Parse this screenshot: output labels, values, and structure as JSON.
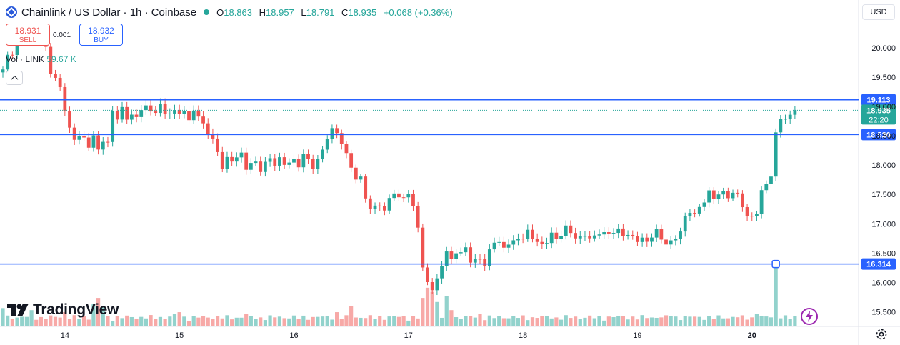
{
  "header": {
    "title": "Chainlink / US Dollar · 1h · Coinbase",
    "ohlc": [
      {
        "k": "O",
        "v": "18.863"
      },
      {
        "k": "H",
        "v": "18.957"
      },
      {
        "k": "L",
        "v": "18.791"
      },
      {
        "k": "C",
        "v": "18.935"
      }
    ],
    "change": "+0.068 (+0.36%)"
  },
  "trade": {
    "sell_price": "18.931",
    "sell_label": "SELL",
    "spread": "0.001",
    "buy_price": "18.932",
    "buy_label": "BUY"
  },
  "volume": {
    "label": "Vol · LINK",
    "value": "59.67 K"
  },
  "currency": "USD",
  "brand": "TradingView",
  "colors": {
    "up": "#26a69a",
    "down": "#ef5350",
    "line": "#2962ff",
    "up_vol": "#92d2cc",
    "down_vol": "#f7a9a7"
  },
  "chart_data": {
    "type": "candlestick",
    "y_min": 15.25,
    "y_max": 20.4,
    "y_ticks": [
      "20.000",
      "19.500",
      "19.000",
      "18.500",
      "18.000",
      "17.500",
      "17.000",
      "16.500",
      "16.000",
      "15.500"
    ],
    "x_labels": [
      {
        "label": "14",
        "index": 13
      },
      {
        "label": "15",
        "index": 37
      },
      {
        "label": "16",
        "index": 61
      },
      {
        "label": "17",
        "index": 85
      },
      {
        "label": "18",
        "index": 109
      },
      {
        "label": "19",
        "index": 133
      },
      {
        "label": "20",
        "index": 157
      }
    ],
    "levels": [
      {
        "label": "19.113",
        "value": 19.113
      },
      {
        "label": "18.520",
        "value": 18.52
      },
      {
        "label": "16.314",
        "value": 16.314
      }
    ],
    "last": {
      "price_label": "18.935",
      "value": 18.935,
      "countdown": "22:20"
    },
    "anchors": [
      [
        0,
        19.6
      ],
      [
        1,
        19.85
      ],
      [
        3,
        20.05
      ],
      [
        5,
        20.3
      ],
      [
        7,
        20.25
      ],
      [
        9,
        20.0
      ],
      [
        10,
        19.6
      ],
      [
        11,
        19.45
      ],
      [
        12,
        19.3
      ],
      [
        13,
        19.0
      ],
      [
        14,
        18.6
      ],
      [
        15,
        18.4
      ],
      [
        16,
        18.55
      ],
      [
        17,
        18.45
      ],
      [
        18,
        18.3
      ],
      [
        19,
        18.5
      ],
      [
        20,
        18.25
      ],
      [
        21,
        18.45
      ],
      [
        22,
        18.35
      ],
      [
        23,
        18.9
      ],
      [
        24,
        18.85
      ],
      [
        25,
        18.95
      ],
      [
        26,
        18.75
      ],
      [
        27,
        18.9
      ],
      [
        28,
        18.8
      ],
      [
        29,
        18.95
      ],
      [
        30,
        19.0
      ],
      [
        31,
        18.9
      ],
      [
        32,
        18.95
      ],
      [
        33,
        19.0
      ],
      [
        34,
        18.85
      ],
      [
        35,
        18.95
      ],
      [
        36,
        18.9
      ],
      [
        37,
        18.85
      ],
      [
        38,
        18.95
      ],
      [
        39,
        18.75
      ],
      [
        40,
        18.95
      ],
      [
        41,
        18.8
      ],
      [
        42,
        18.7
      ],
      [
        43,
        18.6
      ],
      [
        44,
        18.4
      ],
      [
        45,
        18.2
      ],
      [
        46,
        18.0
      ],
      [
        47,
        18.1
      ],
      [
        48,
        18.05
      ],
      [
        49,
        18.15
      ],
      [
        50,
        18.2
      ],
      [
        51,
        17.95
      ],
      [
        52,
        18.0
      ],
      [
        53,
        18.05
      ],
      [
        54,
        17.95
      ],
      [
        55,
        18.0
      ],
      [
        56,
        18.1
      ],
      [
        57,
        18.05
      ],
      [
        58,
        18.1
      ],
      [
        59,
        18.0
      ],
      [
        60,
        18.05
      ],
      [
        61,
        18.1
      ],
      [
        62,
        18.0
      ],
      [
        63,
        18.15
      ],
      [
        64,
        18.1
      ],
      [
        65,
        18.0
      ],
      [
        66,
        18.05
      ],
      [
        67,
        18.25
      ],
      [
        68,
        18.5
      ],
      [
        69,
        18.6
      ],
      [
        70,
        18.55
      ],
      [
        71,
        18.35
      ],
      [
        72,
        18.2
      ],
      [
        73,
        18.0
      ],
      [
        74,
        17.7
      ],
      [
        75,
        17.8
      ],
      [
        76,
        17.5
      ],
      [
        77,
        17.2
      ],
      [
        78,
        17.3
      ],
      [
        79,
        17.35
      ],
      [
        80,
        17.2
      ],
      [
        81,
        17.45
      ],
      [
        82,
        17.5
      ],
      [
        83,
        17.45
      ],
      [
        84,
        17.5
      ],
      [
        85,
        17.45
      ],
      [
        86,
        17.3
      ],
      [
        87,
        17.0
      ],
      [
        88,
        16.2
      ],
      [
        89,
        16.0
      ],
      [
        90,
        15.9
      ],
      [
        91,
        16.05
      ],
      [
        92,
        16.3
      ],
      [
        93,
        16.5
      ],
      [
        94,
        16.4
      ],
      [
        95,
        16.55
      ],
      [
        96,
        16.45
      ],
      [
        97,
        16.6
      ],
      [
        98,
        16.4
      ],
      [
        99,
        16.35
      ],
      [
        100,
        16.4
      ],
      [
        101,
        16.3
      ],
      [
        102,
        16.55
      ],
      [
        103,
        16.7
      ],
      [
        104,
        16.65
      ],
      [
        105,
        16.6
      ],
      [
        106,
        16.7
      ],
      [
        107,
        16.65
      ],
      [
        108,
        16.75
      ],
      [
        109,
        16.8
      ],
      [
        110,
        16.85
      ],
      [
        111,
        16.75
      ],
      [
        112,
        16.7
      ],
      [
        113,
        16.65
      ],
      [
        114,
        16.7
      ],
      [
        115,
        16.8
      ],
      [
        116,
        16.75
      ],
      [
        117,
        16.85
      ],
      [
        118,
        16.9
      ],
      [
        119,
        16.85
      ],
      [
        120,
        16.8
      ],
      [
        121,
        16.75
      ],
      [
        122,
        16.8
      ],
      [
        123,
        16.75
      ],
      [
        124,
        16.8
      ],
      [
        125,
        16.85
      ],
      [
        126,
        16.8
      ],
      [
        127,
        16.85
      ],
      [
        128,
        16.9
      ],
      [
        129,
        16.85
      ],
      [
        130,
        16.8
      ],
      [
        131,
        16.85
      ],
      [
        132,
        16.75
      ],
      [
        133,
        16.7
      ],
      [
        134,
        16.75
      ],
      [
        135,
        16.7
      ],
      [
        136,
        16.8
      ],
      [
        137,
        16.85
      ],
      [
        138,
        16.75
      ],
      [
        139,
        16.7
      ],
      [
        140,
        16.65
      ],
      [
        141,
        16.75
      ],
      [
        142,
        16.9
      ],
      [
        143,
        17.1
      ],
      [
        144,
        17.2
      ],
      [
        145,
        17.15
      ],
      [
        146,
        17.3
      ],
      [
        147,
        17.4
      ],
      [
        148,
        17.5
      ],
      [
        149,
        17.45
      ],
      [
        150,
        17.55
      ],
      [
        151,
        17.5
      ],
      [
        152,
        17.45
      ],
      [
        153,
        17.55
      ],
      [
        154,
        17.5
      ],
      [
        155,
        17.3
      ],
      [
        156,
        17.1
      ],
      [
        157,
        17.15
      ],
      [
        158,
        17.2
      ],
      [
        159,
        17.5
      ],
      [
        160,
        17.7
      ],
      [
        161,
        17.85
      ],
      [
        162,
        18.5
      ],
      [
        163,
        18.8
      ],
      [
        164,
        18.8
      ],
      [
        165,
        18.85
      ],
      [
        166,
        18.935
      ]
    ],
    "volume_highlights": [
      [
        0,
        0.45
      ],
      [
        6,
        0.4
      ],
      [
        13,
        0.35
      ],
      [
        19,
        0.55
      ],
      [
        20,
        0.7
      ],
      [
        21,
        0.5
      ],
      [
        36,
        0.3
      ],
      [
        37,
        0.35
      ],
      [
        51,
        0.3
      ],
      [
        70,
        0.35
      ],
      [
        73,
        0.5
      ],
      [
        88,
        0.7
      ],
      [
        89,
        0.95
      ],
      [
        90,
        0.85
      ],
      [
        91,
        0.6
      ],
      [
        93,
        0.75
      ],
      [
        94,
        0.4
      ],
      [
        100,
        0.3
      ],
      [
        140,
        0.25
      ],
      [
        158,
        0.3
      ],
      [
        162,
        1.6
      ],
      [
        163,
        0.2
      ],
      [
        165,
        0.18
      ]
    ]
  }
}
